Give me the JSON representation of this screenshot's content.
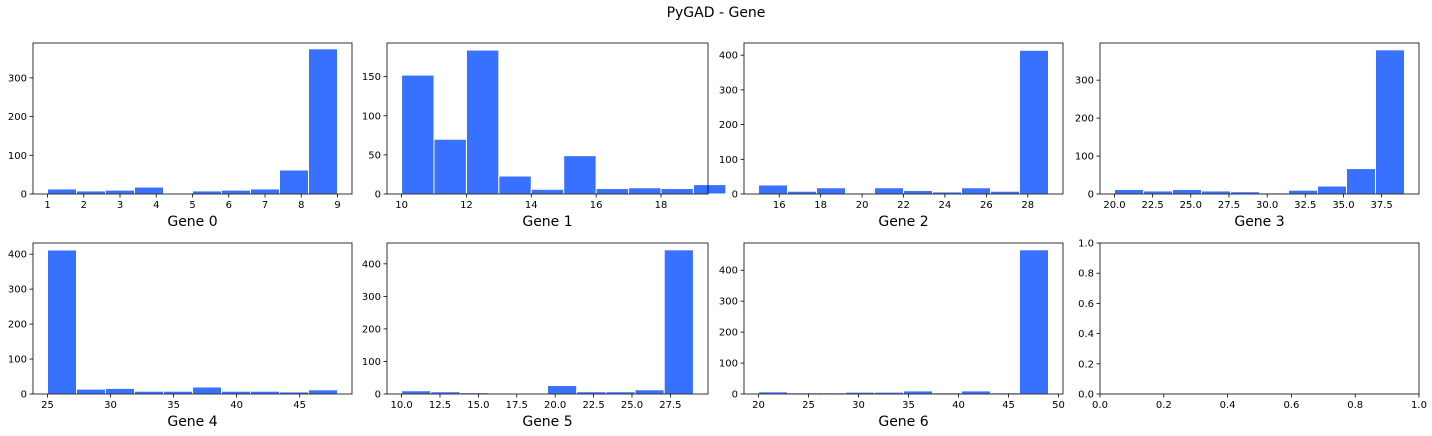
{
  "figure": {
    "suptitle": "PyGAD - Gene",
    "bar_color": "#3870ff",
    "edge_color": "#ffffff"
  },
  "chart_data": [
    {
      "type": "bar",
      "title": "",
      "xlabel": "Gene 0",
      "ylabel": "",
      "bin_edges": [
        1,
        1.8,
        2.6,
        3.4,
        4.2,
        5.0,
        5.8,
        6.6,
        7.4,
        8.2,
        9.0
      ],
      "values": [
        13,
        8,
        10,
        18,
        0,
        8,
        10,
        13,
        62,
        375
      ],
      "xlim": [
        0.6,
        9.4
      ],
      "ylim": [
        0,
        390
      ],
      "xticks": [
        1,
        2,
        3,
        4,
        5,
        6,
        7,
        8,
        9
      ],
      "xtick_labels": [
        "1",
        "2",
        "3",
        "4",
        "5",
        "6",
        "7",
        "8",
        "9"
      ],
      "yticks": [
        0,
        100,
        200,
        300
      ],
      "ytick_labels": [
        "0",
        "100",
        "200",
        "300"
      ]
    },
    {
      "type": "bar",
      "title": "",
      "xlabel": "Gene 1",
      "ylabel": "",
      "bin_edges": [
        10,
        11,
        12,
        13,
        14,
        15,
        16,
        17,
        18,
        19,
        20
      ],
      "values": [
        152,
        70,
        184,
        23,
        6,
        49,
        7,
        8,
        7,
        12
      ],
      "xlim": [
        9.55,
        19.45
      ],
      "ylim": [
        0,
        193
      ],
      "xticks": [
        10,
        12,
        14,
        16,
        18
      ],
      "xtick_labels": [
        "10",
        "12",
        "14",
        "16",
        "18"
      ],
      "yticks": [
        0,
        50,
        100,
        150
      ],
      "ytick_labels": [
        "0",
        "50",
        "100",
        "150"
      ]
    },
    {
      "type": "bar",
      "title": "",
      "xlabel": "Gene 2",
      "ylabel": "",
      "bin_edges": [
        15,
        16.4,
        17.8,
        19.2,
        20.6,
        22.0,
        23.4,
        24.8,
        26.2,
        27.6,
        29.0
      ],
      "values": [
        26,
        8,
        18,
        3,
        18,
        10,
        6,
        18,
        8,
        414
      ],
      "xlim": [
        14.3,
        29.7
      ],
      "ylim": [
        0,
        435
      ],
      "xticks": [
        16,
        18,
        20,
        22,
        24,
        26,
        28
      ],
      "xtick_labels": [
        "16",
        "18",
        "20",
        "22",
        "24",
        "26",
        "28"
      ],
      "yticks": [
        0,
        100,
        200,
        300,
        400
      ],
      "ytick_labels": [
        "0",
        "100",
        "200",
        "300",
        "400"
      ]
    },
    {
      "type": "bar",
      "title": "",
      "xlabel": "Gene 3",
      "ylabel": "",
      "bin_edges": [
        20,
        21.9,
        23.8,
        25.7,
        27.6,
        29.5,
        31.4,
        33.3,
        35.2,
        37.1,
        39.0
      ],
      "values": [
        12,
        8,
        12,
        8,
        6,
        3,
        10,
        21,
        67,
        380
      ],
      "xlim": [
        19.05,
        39.95
      ],
      "ylim": [
        0,
        398
      ],
      "xticks": [
        20,
        22.5,
        25,
        27.5,
        30,
        32.5,
        35,
        37.5
      ],
      "xtick_labels": [
        "20.0",
        "22.5",
        "25.0",
        "27.5",
        "30.0",
        "32.5",
        "35.0",
        "37.5"
      ],
      "yticks": [
        0,
        100,
        200,
        300
      ],
      "ytick_labels": [
        "0",
        "100",
        "200",
        "300"
      ]
    },
    {
      "type": "bar",
      "title": "",
      "xlabel": "Gene 4",
      "ylabel": "",
      "bin_edges": [
        25,
        27.3,
        29.6,
        31.9,
        34.2,
        36.5,
        38.8,
        41.1,
        43.4,
        45.7,
        48.0
      ],
      "values": [
        412,
        14,
        16,
        8,
        8,
        20,
        8,
        8,
        6,
        12
      ],
      "xlim": [
        23.85,
        49.15
      ],
      "ylim": [
        0,
        432
      ],
      "xticks": [
        25,
        30,
        35,
        40,
        45
      ],
      "xtick_labels": [
        "25",
        "30",
        "35",
        "40",
        "45"
      ],
      "yticks": [
        0,
        100,
        200,
        300,
        400
      ],
      "ytick_labels": [
        "0",
        "100",
        "200",
        "300",
        "400"
      ]
    },
    {
      "type": "bar",
      "title": "",
      "xlabel": "Gene 5",
      "ylabel": "",
      "bin_edges": [
        10,
        11.9,
        13.8,
        15.7,
        17.6,
        19.5,
        21.4,
        23.3,
        25.2,
        27.1,
        29.0
      ],
      "values": [
        10,
        7,
        4,
        3,
        3,
        26,
        7,
        7,
        13,
        443
      ],
      "xlim": [
        9.05,
        29.95
      ],
      "ylim": [
        0,
        464
      ],
      "xticks": [
        10,
        12.5,
        15,
        17.5,
        20,
        22.5,
        25,
        27.5
      ],
      "xtick_labels": [
        "10.0",
        "12.5",
        "15.0",
        "17.5",
        "20.0",
        "22.5",
        "25.0",
        "27.5"
      ],
      "yticks": [
        0,
        100,
        200,
        300,
        400
      ],
      "ytick_labels": [
        "0",
        "100",
        "200",
        "300",
        "400"
      ]
    },
    {
      "type": "bar",
      "title": "",
      "xlabel": "Gene 6",
      "ylabel": "",
      "bin_edges": [
        20,
        22.9,
        25.8,
        28.7,
        31.6,
        34.5,
        37.4,
        40.3,
        43.2,
        46.1,
        49.0
      ],
      "values": [
        7,
        4,
        4,
        6,
        6,
        10,
        4,
        10,
        4,
        466
      ],
      "xlim": [
        18.55,
        50.45
      ],
      "ylim": [
        0,
        488
      ],
      "xticks": [
        20,
        25,
        30,
        35,
        40,
        45,
        50
      ],
      "xtick_labels": [
        "20",
        "25",
        "30",
        "35",
        "40",
        "45",
        "50"
      ],
      "yticks": [
        0,
        100,
        200,
        300,
        400
      ],
      "ytick_labels": [
        "0",
        "100",
        "200",
        "300",
        "400"
      ]
    },
    {
      "type": "bar",
      "title": "",
      "xlabel": "",
      "ylabel": "",
      "bin_edges": [],
      "values": [],
      "xlim": [
        0,
        1
      ],
      "ylim": [
        0,
        1
      ],
      "xticks": [
        0,
        0.2,
        0.4,
        0.6,
        0.8,
        1.0
      ],
      "xtick_labels": [
        "0.0",
        "0.2",
        "0.4",
        "0.6",
        "0.8",
        "1.0"
      ],
      "yticks": [
        0,
        0.2,
        0.4,
        0.6,
        0.8,
        1.0
      ],
      "ytick_labels": [
        "0.0",
        "0.2",
        "0.4",
        "0.6",
        "0.8",
        "1.0"
      ]
    }
  ]
}
